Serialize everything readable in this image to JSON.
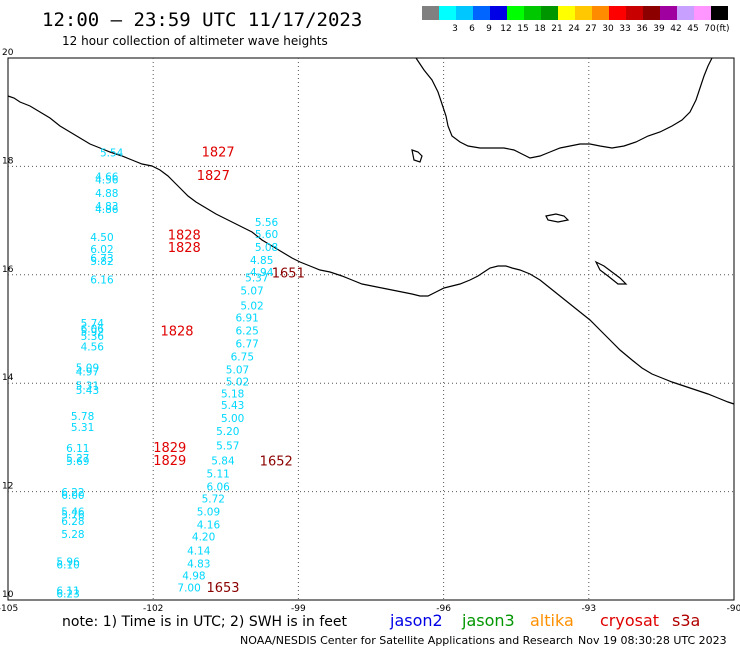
{
  "title": "12:00 – 23:59 UTC 11/17/2023",
  "subtitle": "12 hour collection of altimeter wave heights",
  "unit": "(ft)",
  "scale": [
    {
      "label": "",
      "color": "#808080"
    },
    {
      "label": "3",
      "color": "#00ffff"
    },
    {
      "label": "6",
      "color": "#00c8ff"
    },
    {
      "label": "9",
      "color": "#0064ff"
    },
    {
      "label": "12",
      "color": "#0000e6"
    },
    {
      "label": "15",
      "color": "#00ff00"
    },
    {
      "label": "18",
      "color": "#00c800"
    },
    {
      "label": "21",
      "color": "#009600"
    },
    {
      "label": "24",
      "color": "#ffff00"
    },
    {
      "label": "27",
      "color": "#ffc800"
    },
    {
      "label": "30",
      "color": "#ff8c00"
    },
    {
      "label": "33",
      "color": "#ff0000"
    },
    {
      "label": "36",
      "color": "#c80000"
    },
    {
      "label": "39",
      "color": "#8c0000"
    },
    {
      "label": "42",
      "color": "#a000a0"
    },
    {
      "label": "45",
      "color": "#c8a0ff"
    },
    {
      "label": "70",
      "color": "#ff96ff"
    },
    {
      "label": "",
      "color": "#000000"
    }
  ],
  "axes": {
    "lon_ticks": [
      -105,
      -102,
      -99,
      -96,
      -93,
      -90
    ],
    "lat_ticks": [
      10,
      12,
      14,
      16,
      18,
      20
    ],
    "lon_range": [
      -105,
      -90
    ],
    "lat_range": [
      10,
      20
    ]
  },
  "measurement_color": "#00d8ff",
  "labels": {
    "times": [
      {
        "text": "1827",
        "lon": -101.0,
        "lat": 18.18,
        "color": "#e00000"
      },
      {
        "text": "1827",
        "lon": -101.1,
        "lat": 17.75,
        "color": "#e00000"
      },
      {
        "text": "1828",
        "lon": -101.7,
        "lat": 16.65,
        "color": "#e00000"
      },
      {
        "text": "1828",
        "lon": -101.7,
        "lat": 16.42,
        "color": "#e00000"
      },
      {
        "text": "1828",
        "lon": -101.85,
        "lat": 14.88,
        "color": "#e00000"
      },
      {
        "text": "1829",
        "lon": -102.0,
        "lat": 12.73,
        "color": "#e00000"
      },
      {
        "text": "1829",
        "lon": -102.0,
        "lat": 12.49,
        "color": "#e00000"
      },
      {
        "text": "1651",
        "lon": -99.55,
        "lat": 15.95,
        "color": "#8b0000"
      },
      {
        "text": "1652",
        "lon": -99.8,
        "lat": 12.48,
        "color": "#8b0000"
      },
      {
        "text": "1653",
        "lon": -100.9,
        "lat": 10.15,
        "color": "#8b0000"
      }
    ],
    "waves": [
      {
        "text": "5.54",
        "lon": -103.1,
        "lat": 18.18
      },
      {
        "text": "4.66",
        "lon": -103.2,
        "lat": 17.74
      },
      {
        "text": "4.56",
        "lon": -103.2,
        "lat": 17.68
      },
      {
        "text": "4.88",
        "lon": -103.2,
        "lat": 17.44
      },
      {
        "text": "4.83",
        "lon": -103.2,
        "lat": 17.2
      },
      {
        "text": "4.86",
        "lon": -103.2,
        "lat": 17.14
      },
      {
        "text": "4.50",
        "lon": -103.3,
        "lat": 16.62
      },
      {
        "text": "6.02",
        "lon": -103.3,
        "lat": 16.4
      },
      {
        "text": "6.73",
        "lon": -103.3,
        "lat": 16.24
      },
      {
        "text": "5.82",
        "lon": -103.3,
        "lat": 16.18
      },
      {
        "text": "6.16",
        "lon": -103.3,
        "lat": 15.84
      },
      {
        "text": "5.74",
        "lon": -103.5,
        "lat": 15.04
      },
      {
        "text": "6.06",
        "lon": -103.5,
        "lat": 14.94
      },
      {
        "text": "5.92",
        "lon": -103.5,
        "lat": 14.88
      },
      {
        "text": "5.36",
        "lon": -103.5,
        "lat": 14.8
      },
      {
        "text": "4.56",
        "lon": -103.5,
        "lat": 14.6
      },
      {
        "text": "5.09",
        "lon": -103.6,
        "lat": 14.22
      },
      {
        "text": "4.97",
        "lon": -103.6,
        "lat": 14.14
      },
      {
        "text": "5.31",
        "lon": -103.6,
        "lat": 13.88
      },
      {
        "text": "5.43",
        "lon": -103.6,
        "lat": 13.8
      },
      {
        "text": "5.78",
        "lon": -103.7,
        "lat": 13.32
      },
      {
        "text": "5.31",
        "lon": -103.7,
        "lat": 13.12
      },
      {
        "text": "6.11",
        "lon": -103.8,
        "lat": 12.73
      },
      {
        "text": "5.27",
        "lon": -103.8,
        "lat": 12.55
      },
      {
        "text": "5.69",
        "lon": -103.8,
        "lat": 12.49
      },
      {
        "text": "6.22",
        "lon": -103.9,
        "lat": 11.92
      },
      {
        "text": "6.00",
        "lon": -103.9,
        "lat": 11.86
      },
      {
        "text": "5.46",
        "lon": -103.9,
        "lat": 11.56
      },
      {
        "text": "5.76",
        "lon": -103.9,
        "lat": 11.5
      },
      {
        "text": "6.28",
        "lon": -103.9,
        "lat": 11.38
      },
      {
        "text": "5.28",
        "lon": -103.9,
        "lat": 11.14
      },
      {
        "text": "5.96",
        "lon": -104.0,
        "lat": 10.64
      },
      {
        "text": "6.10",
        "lon": -104.0,
        "lat": 10.58
      },
      {
        "text": "6.11",
        "lon": -104.0,
        "lat": 10.1
      },
      {
        "text": "6.23",
        "lon": -104.0,
        "lat": 10.05
      },
      {
        "text": "5.56",
        "lon": -99.9,
        "lat": 16.9
      },
      {
        "text": "5.60",
        "lon": -99.9,
        "lat": 16.68
      },
      {
        "text": "5.08",
        "lon": -99.9,
        "lat": 16.44
      },
      {
        "text": "4.85",
        "lon": -100.0,
        "lat": 16.2
      },
      {
        "text": "4.94",
        "lon": -100.0,
        "lat": 15.98
      },
      {
        "text": "5.37",
        "lon": -100.1,
        "lat": 15.88
      },
      {
        "text": "5.07",
        "lon": -100.2,
        "lat": 15.64
      },
      {
        "text": "5.02",
        "lon": -100.2,
        "lat": 15.36
      },
      {
        "text": "6.91",
        "lon": -100.3,
        "lat": 15.14
      },
      {
        "text": "6.25",
        "lon": -100.3,
        "lat": 14.9
      },
      {
        "text": "6.77",
        "lon": -100.3,
        "lat": 14.66
      },
      {
        "text": "6.75",
        "lon": -100.4,
        "lat": 14.42
      },
      {
        "text": "5.07",
        "lon": -100.5,
        "lat": 14.18
      },
      {
        "text": "5.02",
        "lon": -100.5,
        "lat": 13.96
      },
      {
        "text": "5.18",
        "lon": -100.6,
        "lat": 13.74
      },
      {
        "text": "5.43",
        "lon": -100.6,
        "lat": 13.52
      },
      {
        "text": "5.00",
        "lon": -100.6,
        "lat": 13.28
      },
      {
        "text": "5.20",
        "lon": -100.7,
        "lat": 13.04
      },
      {
        "text": "5.57",
        "lon": -100.7,
        "lat": 12.78
      },
      {
        "text": "5.84",
        "lon": -100.8,
        "lat": 12.5
      },
      {
        "text": "5.11",
        "lon": -100.9,
        "lat": 12.26
      },
      {
        "text": "6.06",
        "lon": -100.9,
        "lat": 12.02
      },
      {
        "text": "5.72",
        "lon": -101.0,
        "lat": 11.8
      },
      {
        "text": "5.09",
        "lon": -101.1,
        "lat": 11.56
      },
      {
        "text": "4.16",
        "lon": -101.1,
        "lat": 11.32
      },
      {
        "text": "4.20",
        "lon": -101.2,
        "lat": 11.1
      },
      {
        "text": "4.14",
        "lon": -101.3,
        "lat": 10.84
      },
      {
        "text": "4.83",
        "lon": -101.3,
        "lat": 10.6
      },
      {
        "text": "4.98",
        "lon": -101.4,
        "lat": 10.38
      },
      {
        "text": "7.00",
        "lon": -101.5,
        "lat": 10.16
      }
    ]
  },
  "note": "note: 1) Time is in UTC; 2) SWH is in feet",
  "satellites": [
    {
      "name": "jason2",
      "color": "#0000e6"
    },
    {
      "name": "jason3",
      "color": "#009600"
    },
    {
      "name": "altika",
      "color": "#ff9000"
    },
    {
      "name": "cryosat",
      "color": "#e00000"
    },
    {
      "name": "s3a",
      "color": "#b00000"
    }
  ],
  "credit": "NOAA/NESDIS Center for Satellite Applications and Research",
  "generated": "Nov 19 08:30:28 UTC 2023"
}
